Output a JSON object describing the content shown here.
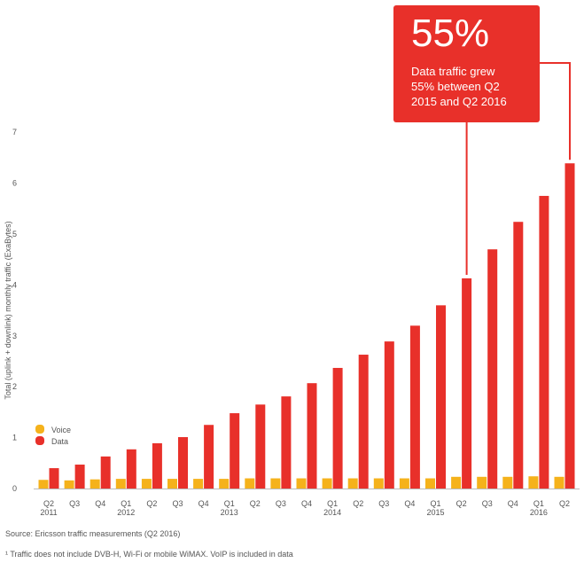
{
  "chart_data": {
    "type": "bar",
    "title": "",
    "xlabel": "",
    "ylabel": "Total (uplink + downlink) monthly traffic (ExaBytes)",
    "ylim": [
      0,
      7
    ],
    "yticks": [
      0,
      1,
      2,
      3,
      4,
      5,
      6,
      7
    ],
    "grid": false,
    "legend_position": "bottom-left",
    "categories": [
      "Q2 2011",
      "Q3",
      "Q4",
      "Q1 2012",
      "Q2",
      "Q3",
      "Q4",
      "Q1 2013",
      "Q2",
      "Q3",
      "Q4",
      "Q1 2014",
      "Q2",
      "Q3",
      "Q4",
      "Q1 2015",
      "Q2",
      "Q3",
      "Q4",
      "Q1 2016",
      "Q2"
    ],
    "category_lines": [
      [
        "Q2",
        "2011"
      ],
      [
        "Q3"
      ],
      [
        "Q4"
      ],
      [
        "Q1",
        "2012"
      ],
      [
        "Q2"
      ],
      [
        "Q3"
      ],
      [
        "Q4"
      ],
      [
        "Q1",
        "2013"
      ],
      [
        "Q2"
      ],
      [
        "Q3"
      ],
      [
        "Q4"
      ],
      [
        "Q1",
        "2014"
      ],
      [
        "Q2"
      ],
      [
        "Q3"
      ],
      [
        "Q4"
      ],
      [
        "Q1",
        "2015"
      ],
      [
        "Q2"
      ],
      [
        "Q3"
      ],
      [
        "Q4"
      ],
      [
        "Q1",
        "2016"
      ],
      [
        "Q2"
      ]
    ],
    "series": [
      {
        "name": "Voice",
        "color": "#f5b21b",
        "values": [
          0.17,
          0.16,
          0.18,
          0.19,
          0.19,
          0.19,
          0.19,
          0.19,
          0.2,
          0.2,
          0.2,
          0.2,
          0.2,
          0.2,
          0.2,
          0.2,
          0.23,
          0.23,
          0.23,
          0.24,
          0.23
        ]
      },
      {
        "name": "Data",
        "color": "#e8302a",
        "values": [
          0.4,
          0.47,
          0.63,
          0.77,
          0.89,
          1.01,
          1.25,
          1.48,
          1.65,
          1.81,
          2.07,
          2.37,
          2.63,
          2.89,
          3.2,
          3.6,
          4.13,
          4.7,
          5.24,
          5.75,
          6.39
        ]
      }
    ],
    "annotation": {
      "headline": "55%",
      "text_lines": [
        "Data traffic grew",
        "55% between Q2",
        "2015 and Q2 2016"
      ]
    }
  },
  "footer": {
    "source": "Source: Ericsson traffic measurements (Q2 2016)",
    "note": "¹ Traffic does not include DVB-H, Wi-Fi or mobile WiMAX. VoIP is included in data"
  }
}
